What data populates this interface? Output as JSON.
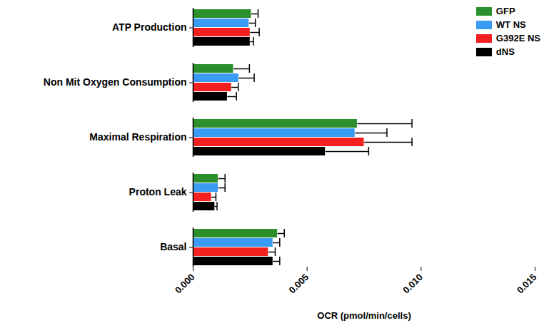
{
  "chart_data": {
    "type": "bar",
    "orientation": "horizontal",
    "xlabel": "OCR (pmol/min/cells)",
    "categories": [
      "ATP Production",
      "Non Mit Oxygen Consumption",
      "Maximal Respiration",
      "Proton Leak",
      "Basal"
    ],
    "series": [
      {
        "name": "GFP",
        "color": "#2b8f2b",
        "values": [
          0.00255,
          0.00177,
          0.0072,
          0.0011,
          0.0037
        ],
        "errors": [
          0.0003,
          0.0007,
          0.0024,
          0.0003,
          0.0003
        ]
      },
      {
        "name": "WT NS",
        "color": "#3a9bf4",
        "values": [
          0.00245,
          0.002,
          0.0071,
          0.0011,
          0.0035
        ],
        "errors": [
          0.00028,
          0.00068,
          0.0014,
          0.0003,
          0.0003
        ]
      },
      {
        "name": "G392E NS",
        "color": "#f42020",
        "values": [
          0.0025,
          0.00168,
          0.0075,
          0.0008,
          0.0033
        ],
        "errors": [
          0.0004,
          0.0003,
          0.0021,
          0.0002,
          0.0003
        ]
      },
      {
        "name": "dNS",
        "color": "#000000",
        "values": [
          0.0025,
          0.0015,
          0.0058,
          0.00095,
          0.0035
        ],
        "errors": [
          0.00015,
          0.0004,
          0.0019,
          0.0001,
          0.0003
        ]
      }
    ],
    "xlim": [
      0,
      0.015
    ],
    "xticks": [
      {
        "value": 0,
        "label": "0.000"
      },
      {
        "value": 0.005,
        "label": "0.005"
      },
      {
        "value": 0.01,
        "label": "0.010"
      },
      {
        "value": 0.015,
        "label": "0.015"
      }
    ],
    "legend": "top-right"
  }
}
